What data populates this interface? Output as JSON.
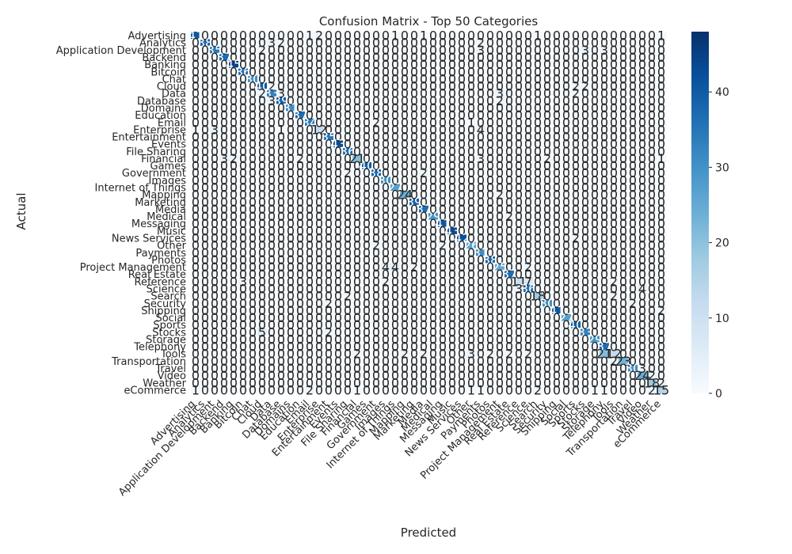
{
  "chart_data": {
    "type": "heatmap",
    "title": "Confusion Matrix - Top 50 Categories",
    "xlabel": "Predicted",
    "ylabel": "Actual",
    "categories": [
      "Advertising",
      "Analytics",
      "Application Development",
      "Backend",
      "Banking",
      "Bitcoin",
      "Chat",
      "Cloud",
      "Data",
      "Database",
      "Domains",
      "Education",
      "Email",
      "Enterprise",
      "Entertainment",
      "Events",
      "File Sharing",
      "Financial",
      "Games",
      "Government",
      "Images",
      "Internet of Things",
      "Mapping",
      "Marketing",
      "Media",
      "Medical",
      "Messaging",
      "Music",
      "News Services",
      "Other",
      "Payments",
      "Photos",
      "Project Management",
      "Real Estate",
      "Reference",
      "Science",
      "Search",
      "Security",
      "Shipping",
      "Social",
      "Sports",
      "Stocks",
      "Storage",
      "Telephony",
      "Tools",
      "Transportation",
      "Travel",
      "Video",
      "Weather",
      "eCommerce"
    ],
    "diagonal": [
      41,
      38,
      35,
      37,
      45,
      36,
      30,
      40,
      33,
      39,
      31,
      37,
      34,
      12,
      35,
      43,
      36,
      21,
      40,
      38,
      30,
      27,
      24,
      39,
      37,
      29,
      41,
      43,
      42,
      26,
      31,
      38,
      25,
      37,
      11,
      36,
      18,
      30,
      41,
      27,
      40,
      33,
      29,
      37,
      12,
      23,
      30,
      24,
      18,
      15
    ],
    "off_diagonal": [
      {
        "r": 0,
        "c": 12,
        "v": 1
      },
      {
        "r": 0,
        "c": 13,
        "v": 2
      },
      {
        "r": 0,
        "c": 21,
        "v": 1
      },
      {
        "r": 0,
        "c": 24,
        "v": 1
      },
      {
        "r": 0,
        "c": 36,
        "v": 1
      },
      {
        "r": 0,
        "c": 49,
        "v": 1
      },
      {
        "r": 1,
        "c": 8,
        "v": 3
      },
      {
        "r": 1,
        "c": 9,
        "v": 2
      },
      {
        "r": 1,
        "c": 30,
        "v": 2
      },
      {
        "r": 2,
        "c": 7,
        "v": 2
      },
      {
        "r": 2,
        "c": 30,
        "v": 3
      },
      {
        "r": 2,
        "c": 41,
        "v": 3
      },
      {
        "r": 2,
        "c": 43,
        "v": 3
      },
      {
        "r": 7,
        "c": 8,
        "v": 2
      },
      {
        "r": 7,
        "c": 40,
        "v": 2
      },
      {
        "r": 7,
        "c": 41,
        "v": 2
      },
      {
        "r": 8,
        "c": 9,
        "v": 3
      },
      {
        "r": 8,
        "c": 7,
        "v": 2
      },
      {
        "r": 8,
        "c": 32,
        "v": 3
      },
      {
        "r": 8,
        "c": 40,
        "v": 2
      },
      {
        "r": 9,
        "c": 8,
        "v": 3
      },
      {
        "r": 9,
        "c": 32,
        "v": 2
      },
      {
        "r": 12,
        "c": 19,
        "v": 2
      },
      {
        "r": 12,
        "c": 29,
        "v": 1
      },
      {
        "r": 13,
        "c": 2,
        "v": 3
      },
      {
        "r": 13,
        "c": 0,
        "v": 1
      },
      {
        "r": 13,
        "c": 9,
        "v": 1
      },
      {
        "r": 13,
        "c": 30,
        "v": 4
      },
      {
        "r": 17,
        "c": 3,
        "v": 3
      },
      {
        "r": 17,
        "c": 4,
        "v": 2
      },
      {
        "r": 17,
        "c": 11,
        "v": 2
      },
      {
        "r": 17,
        "c": 30,
        "v": 3
      },
      {
        "r": 17,
        "c": 37,
        "v": 2
      },
      {
        "r": 17,
        "c": 49,
        "v": 1
      },
      {
        "r": 19,
        "c": 16,
        "v": 2
      },
      {
        "r": 19,
        "c": 24,
        "v": 2
      },
      {
        "r": 22,
        "c": 32,
        "v": 2
      },
      {
        "r": 25,
        "c": 33,
        "v": 2
      },
      {
        "r": 28,
        "c": 40,
        "v": 2
      },
      {
        "r": 29,
        "c": 19,
        "v": 2
      },
      {
        "r": 29,
        "c": 26,
        "v": 2
      },
      {
        "r": 32,
        "c": 20,
        "v": 4
      },
      {
        "r": 32,
        "c": 21,
        "v": 4
      },
      {
        "r": 32,
        "c": 23,
        "v": 2
      },
      {
        "r": 32,
        "c": 35,
        "v": 2
      },
      {
        "r": 34,
        "c": 5,
        "v": 3
      },
      {
        "r": 34,
        "c": 20,
        "v": 2
      },
      {
        "r": 34,
        "c": 35,
        "v": 7
      },
      {
        "r": 34,
        "c": 44,
        "v": 2
      },
      {
        "r": 35,
        "c": 34,
        "v": 3
      },
      {
        "r": 35,
        "c": 47,
        "v": 4
      },
      {
        "r": 36,
        "c": 16,
        "v": 2
      },
      {
        "r": 36,
        "c": 44,
        "v": 2
      },
      {
        "r": 37,
        "c": 14,
        "v": 2
      },
      {
        "r": 37,
        "c": 46,
        "v": 2
      },
      {
        "r": 38,
        "c": 49,
        "v": 2
      },
      {
        "r": 41,
        "c": 7,
        "v": 5
      },
      {
        "r": 41,
        "c": 14,
        "v": 2
      },
      {
        "r": 44,
        "c": 17,
        "v": 2
      },
      {
        "r": 44,
        "c": 22,
        "v": 2
      },
      {
        "r": 44,
        "c": 24,
        "v": 2
      },
      {
        "r": 44,
        "c": 29,
        "v": 3
      },
      {
        "r": 44,
        "c": 31,
        "v": 2
      },
      {
        "r": 44,
        "c": 33,
        "v": 2
      },
      {
        "r": 44,
        "c": 35,
        "v": 2
      },
      {
        "r": 44,
        "c": 43,
        "v": 21
      },
      {
        "r": 45,
        "c": 44,
        "v": 2
      },
      {
        "r": 46,
        "c": 47,
        "v": 3
      },
      {
        "r": 47,
        "c": 48,
        "v": 2
      },
      {
        "r": 48,
        "c": 49,
        "v": 2
      },
      {
        "r": 49,
        "c": 0,
        "v": 1
      },
      {
        "r": 49,
        "c": 12,
        "v": 2
      },
      {
        "r": 49,
        "c": 17,
        "v": 1
      },
      {
        "r": 49,
        "c": 29,
        "v": 1
      },
      {
        "r": 49,
        "c": 30,
        "v": 1
      },
      {
        "r": 49,
        "c": 36,
        "v": 2
      },
      {
        "r": 49,
        "c": 42,
        "v": 1
      },
      {
        "r": 49,
        "c": 43,
        "v": 1
      },
      {
        "r": 49,
        "c": 48,
        "v": 2
      }
    ],
    "colormap": "Blues",
    "vmin": 0,
    "vmax": 48,
    "colorbar_ticks": [
      0,
      10,
      20,
      30,
      40
    ],
    "colors": {
      "low": "#f7fbff",
      "high": "#08306b"
    }
  }
}
